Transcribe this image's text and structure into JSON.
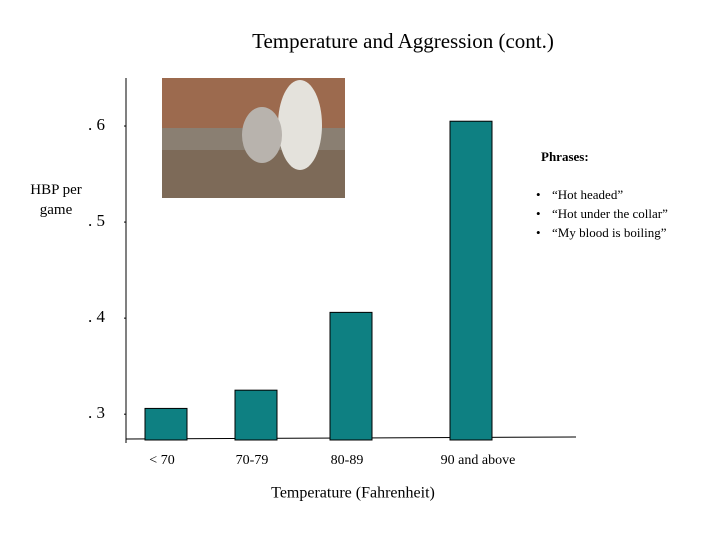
{
  "chart_data": {
    "type": "bar",
    "title": "Temperature and Aggression (cont.)",
    "y_label": "HBP per game",
    "x_label": "Temperature (Fahrenheit)",
    "categories": [
      "< 70",
      "70-79",
      "80-89",
      "90 and above"
    ],
    "values": [
      0.306,
      0.325,
      0.406,
      0.605
    ],
    "color": "#0e8082",
    "ylim": [
      0.27,
      0.65
    ],
    "yticks": [
      {
        "value": 0.3,
        "label": ". 3"
      },
      {
        "value": 0.4,
        "label": ". 4"
      },
      {
        "value": 0.5,
        "label": ". 5"
      },
      {
        "value": 0.6,
        "label": ". 6"
      }
    ],
    "grid": false
  },
  "annotations": {
    "heading": "Phrases:",
    "items": [
      "“Hot headed”",
      "“Hot under the collar”",
      "“My blood is boiling”"
    ]
  }
}
